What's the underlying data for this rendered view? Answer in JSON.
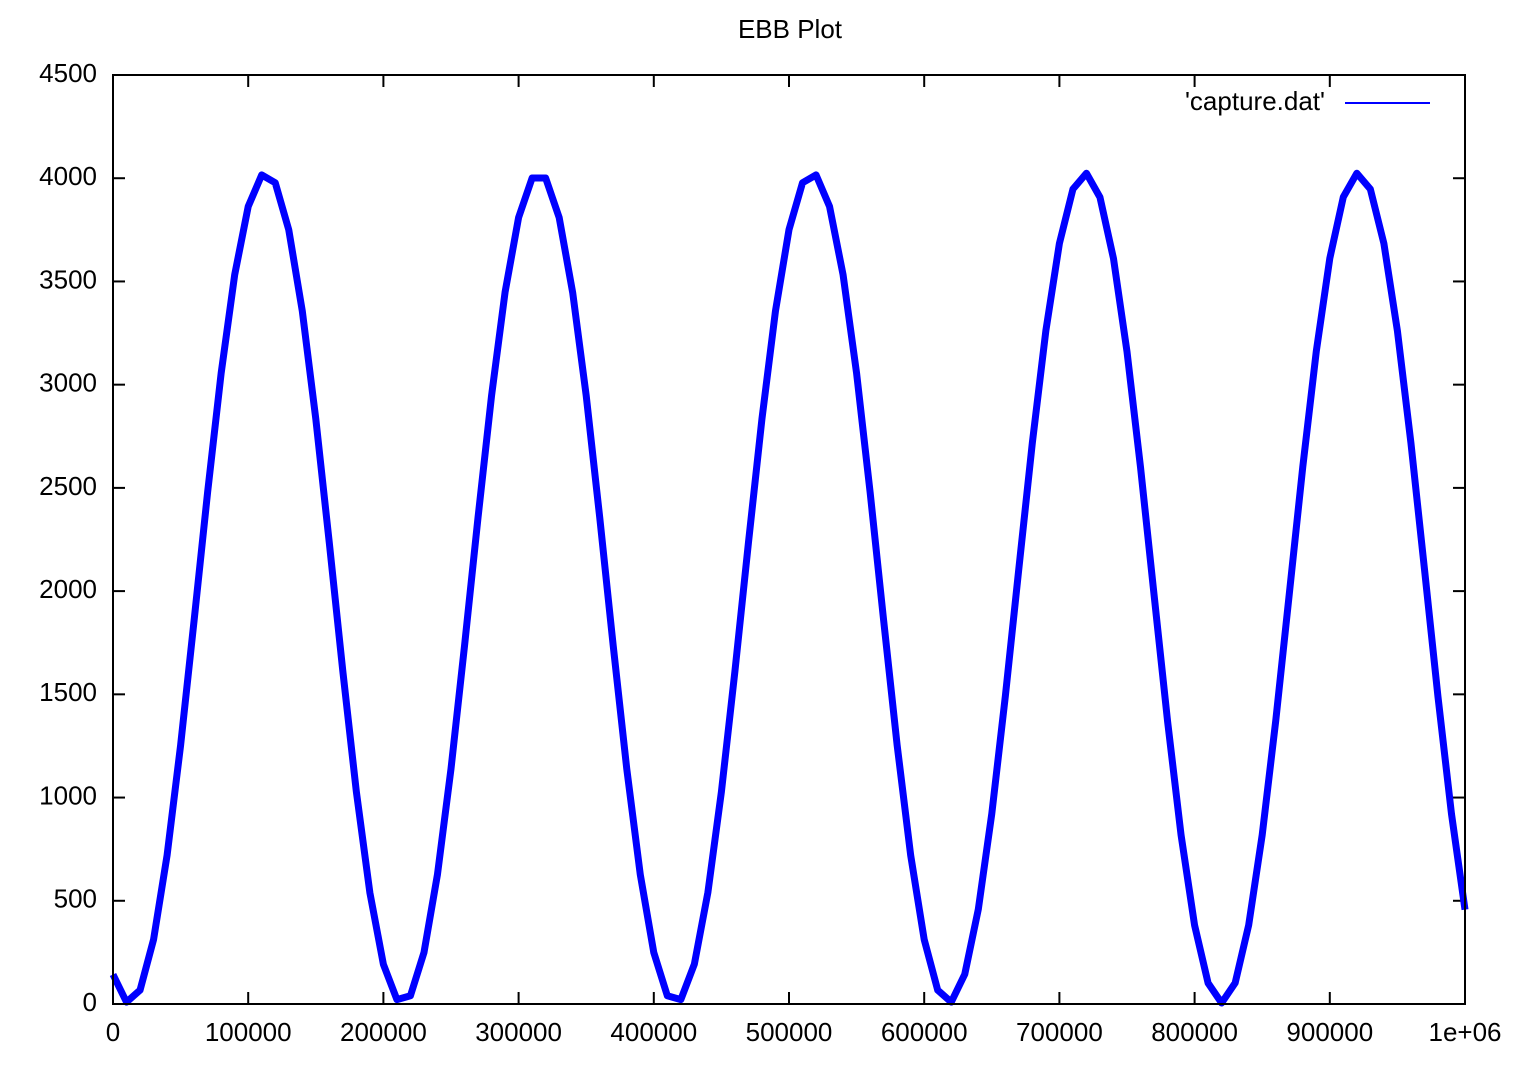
{
  "chart_data": {
    "type": "line",
    "title": "EBB Plot",
    "x": [
      0,
      10000,
      20000,
      30000,
      40000,
      50000,
      60000,
      70000,
      80000,
      90000,
      100000,
      110000,
      120000,
      130000,
      140000,
      150000,
      160000,
      170000,
      180000,
      190000,
      200000,
      210000,
      220000,
      230000,
      240000,
      250000,
      260000,
      270000,
      280000,
      290000,
      300000,
      310000,
      320000,
      330000,
      340000,
      350000,
      360000,
      370000,
      380000,
      390000,
      400000,
      410000,
      420000,
      430000,
      440000,
      450000,
      460000,
      470000,
      480000,
      490000,
      500000,
      510000,
      520000,
      530000,
      540000,
      550000,
      560000,
      570000,
      580000,
      590000,
      600000,
      610000,
      620000,
      630000,
      640000,
      650000,
      660000,
      670000,
      680000,
      690000,
      700000,
      710000,
      720000,
      730000,
      740000,
      750000,
      760000,
      770000,
      780000,
      790000,
      800000,
      810000,
      820000,
      830000,
      840000,
      850000,
      860000,
      870000,
      880000,
      890000,
      900000,
      910000,
      920000,
      930000,
      940000,
      950000,
      960000,
      970000,
      980000,
      990000,
      1000000
    ],
    "series": [
      {
        "name": "'capture.dat'",
        "color": "#0000ff",
        "values": [
          143,
          9,
          67,
          312,
          720,
          1253,
          1859,
          2480,
          3056,
          3532,
          3863,
          4016,
          3978,
          3750,
          3357,
          2834,
          2233,
          1611,
          1028,
          539,
          192,
          21,
          40,
          249,
          628,
          1139,
          1735,
          2357,
          2947,
          3448,
          3810,
          4001,
          4001,
          3810,
          3446,
          2947,
          2357,
          1734,
          1139,
          627,
          249,
          40,
          21,
          193,
          540,
          1028,
          1612,
          2234,
          2835,
          3357,
          3751,
          3978,
          4016,
          3863,
          3532,
          3055,
          2479,
          1858,
          1253,
          720,
          312,
          67,
          9,
          144,
          458,
          922,
          1490,
          2109,
          2719,
          3262,
          3684,
          3947,
          4024,
          3908,
          3611,
          3160,
          2600,
          1983,
          1370,
          818,
          381,
          101,
          5,
          102,
          382,
          819,
          1371,
          1984,
          2601,
          3161,
          3612,
          3909,
          4024,
          3947,
          3684,
          3261,
          2718,
          2108,
          1489,
          921,
          457
        ]
      }
    ],
    "xlim": [
      0,
      1000000
    ],
    "xticks": [
      0,
      100000,
      200000,
      300000,
      400000,
      500000,
      600000,
      700000,
      800000,
      900000,
      {
        "value": 1000000,
        "label": "1e+06"
      }
    ],
    "ylim": [
      0,
      4500
    ],
    "yticks": [
      0,
      500,
      1000,
      1500,
      2000,
      2500,
      3000,
      3500,
      4000,
      4500
    ],
    "legend": "top-right"
  }
}
